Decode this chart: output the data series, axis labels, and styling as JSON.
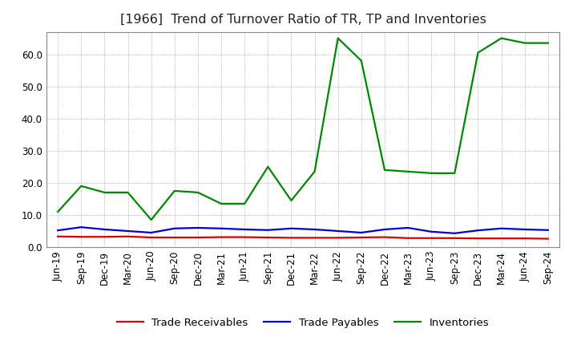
{
  "title": "[1966]  Trend of Turnover Ratio of TR, TP and Inventories",
  "x_labels": [
    "Jun-19",
    "Sep-19",
    "Dec-19",
    "Mar-20",
    "Jun-20",
    "Sep-20",
    "Dec-20",
    "Mar-21",
    "Jun-21",
    "Sep-21",
    "Dec-21",
    "Mar-22",
    "Jun-22",
    "Sep-22",
    "Dec-22",
    "Mar-23",
    "Jun-23",
    "Sep-23",
    "Dec-23",
    "Mar-24",
    "Jun-24",
    "Sep-24"
  ],
  "trade_receivables": [
    3.3,
    3.2,
    3.2,
    3.3,
    3.0,
    3.0,
    3.0,
    3.1,
    3.1,
    3.0,
    2.9,
    2.9,
    2.9,
    3.0,
    3.1,
    2.8,
    2.8,
    2.8,
    2.7,
    2.7,
    2.7,
    2.6
  ],
  "trade_payables": [
    5.2,
    6.2,
    5.5,
    5.0,
    4.5,
    5.8,
    6.0,
    5.8,
    5.5,
    5.3,
    5.8,
    5.5,
    5.0,
    4.5,
    5.5,
    6.0,
    4.8,
    4.3,
    5.2,
    5.8,
    5.5,
    5.3
  ],
  "inventories": [
    11.0,
    19.0,
    17.0,
    17.0,
    8.5,
    17.5,
    17.0,
    13.5,
    13.5,
    25.0,
    14.5,
    23.5,
    65.0,
    58.0,
    24.0,
    23.5,
    23.0,
    23.0,
    60.5,
    65.0,
    63.5,
    63.5
  ],
  "color_tr": "#dd0000",
  "color_tp": "#0000dd",
  "color_inv": "#008800",
  "ylim": [
    0.0,
    67.0
  ],
  "yticks": [
    0.0,
    10.0,
    20.0,
    30.0,
    40.0,
    50.0,
    60.0
  ],
  "background_color": "#ffffff",
  "plot_bg_color": "#ffffff",
  "grid_color": "#999999",
  "legend_tr": "Trade Receivables",
  "legend_tp": "Trade Payables",
  "legend_inv": "Inventories",
  "title_fontsize": 11.5,
  "label_fontsize": 8.5,
  "legend_fontsize": 9.5,
  "linewidth": 1.6
}
